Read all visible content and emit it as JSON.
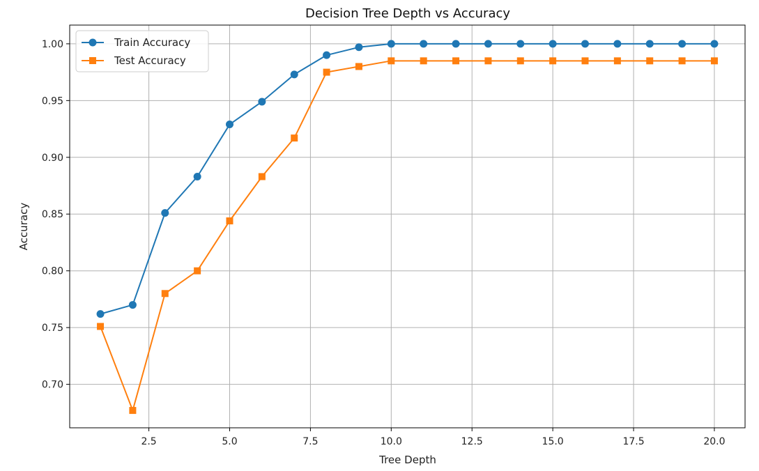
{
  "chart_data": {
    "type": "line",
    "title": "Decision Tree Depth vs Accuracy",
    "xlabel": "Tree Depth",
    "ylabel": "Accuracy",
    "x": [
      1,
      2,
      3,
      4,
      5,
      6,
      7,
      8,
      9,
      10,
      11,
      12,
      13,
      14,
      15,
      16,
      17,
      18,
      19,
      20
    ],
    "xlim": [
      0.05,
      20.95
    ],
    "ylim": [
      0.6617,
      1.0165
    ],
    "xticks": [
      2.5,
      5.0,
      7.5,
      10.0,
      12.5,
      15.0,
      17.5,
      20.0
    ],
    "xtick_labels": [
      "2.5",
      "5.0",
      "7.5",
      "10.0",
      "12.5",
      "15.0",
      "17.5",
      "20.0"
    ],
    "yticks": [
      0.7,
      0.75,
      0.8,
      0.85,
      0.9,
      0.95,
      1.0
    ],
    "ytick_labels": [
      "0.70",
      "0.75",
      "0.80",
      "0.85",
      "0.90",
      "0.95",
      "1.00"
    ],
    "grid": true,
    "legend_position": "top-left",
    "series": [
      {
        "name": "Train Accuracy",
        "color": "#1f77b4",
        "marker": "circle",
        "values": [
          0.762,
          0.77,
          0.851,
          0.883,
          0.929,
          0.949,
          0.973,
          0.99,
          0.997,
          1.0,
          1.0,
          1.0,
          1.0,
          1.0,
          1.0,
          1.0,
          1.0,
          1.0,
          1.0,
          1.0
        ]
      },
      {
        "name": "Test Accuracy",
        "color": "#ff7f0e",
        "marker": "square",
        "values": [
          0.751,
          0.677,
          0.78,
          0.8,
          0.844,
          0.883,
          0.917,
          0.975,
          0.98,
          0.985,
          0.985,
          0.985,
          0.985,
          0.985,
          0.985,
          0.985,
          0.985,
          0.985,
          0.985,
          0.985
        ]
      }
    ]
  }
}
